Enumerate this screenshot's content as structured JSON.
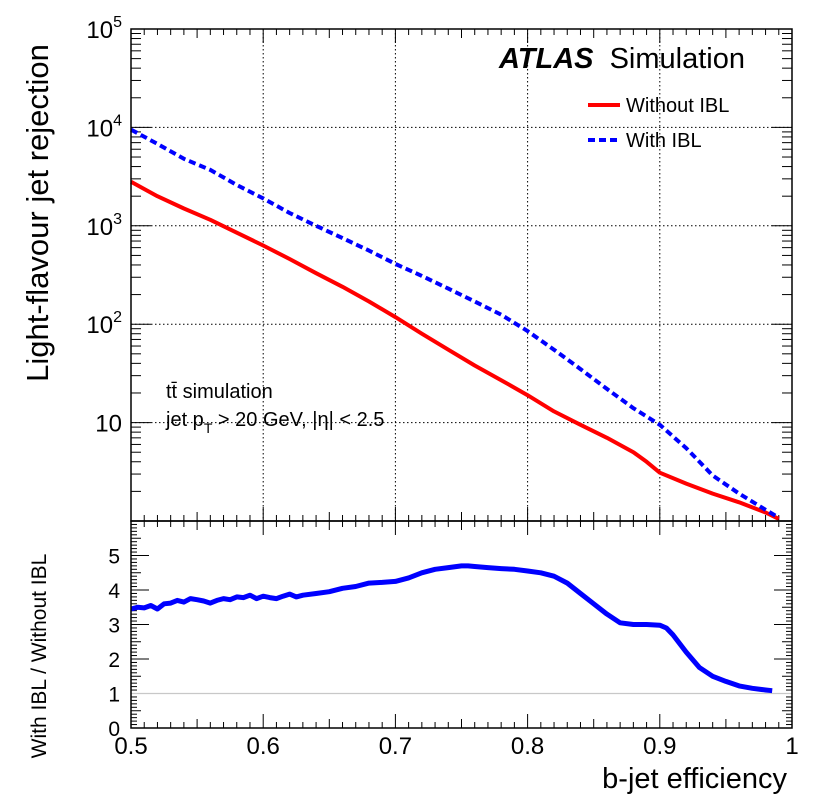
{
  "chart_data": [
    {
      "type": "line",
      "panel": "top",
      "yscale": "log",
      "xlim": [
        0.5,
        1.0
      ],
      "ylim": [
        1,
        100000
      ],
      "ylabel": "Light-flavour jet rejection",
      "ytick_labels": [
        {
          "value": 10,
          "base": "10",
          "exp": ""
        },
        {
          "value": 100,
          "base": "10",
          "exp": "2"
        },
        {
          "value": 1000,
          "base": "10",
          "exp": "3"
        },
        {
          "value": 10000,
          "base": "10",
          "exp": "4"
        },
        {
          "value": 100000,
          "base": "10",
          "exp": "5"
        }
      ],
      "grid": true,
      "legend_position": "top-right",
      "branding": {
        "bold": "ATLAS",
        "rest": "Simulation"
      },
      "annotation_line1": "tt̄ simulation",
      "annotation_line2": {
        "prefix": "jet p",
        "sub": "T",
        "suffix": " > 20 GeV, |η| < 2.5"
      },
      "series": [
        {
          "name": "Without IBL",
          "color": "#ff0000",
          "style": "solid",
          "x": [
            0.5,
            0.52,
            0.54,
            0.56,
            0.58,
            0.6,
            0.62,
            0.64,
            0.66,
            0.68,
            0.7,
            0.72,
            0.74,
            0.76,
            0.78,
            0.8,
            0.82,
            0.84,
            0.86,
            0.88,
            0.89,
            0.9,
            0.92,
            0.94,
            0.96,
            0.98,
            0.99
          ],
          "values": [
            2800,
            2000,
            1500,
            1150,
            850,
            630,
            460,
            330,
            240,
            170,
            118,
            80,
            55,
            38,
            27,
            19,
            13,
            9.5,
            7,
            5,
            4,
            3.1,
            2.4,
            1.9,
            1.55,
            1.22,
            1.05
          ]
        },
        {
          "name": "With IBL",
          "color": "#0000ff",
          "style": "dashed",
          "x": [
            0.5,
            0.52,
            0.54,
            0.56,
            0.58,
            0.6,
            0.62,
            0.64,
            0.66,
            0.68,
            0.7,
            0.72,
            0.74,
            0.76,
            0.78,
            0.8,
            0.82,
            0.84,
            0.86,
            0.88,
            0.9,
            0.92,
            0.94,
            0.96,
            0.98,
            0.99
          ],
          "values": [
            9500,
            6800,
            4800,
            3700,
            2600,
            1900,
            1350,
            1000,
            750,
            560,
            410,
            310,
            230,
            170,
            125,
            85,
            55,
            35,
            22,
            14,
            9.5,
            5.5,
            2.9,
            1.9,
            1.3,
            1.08
          ]
        }
      ]
    },
    {
      "type": "line",
      "panel": "bottom",
      "xlim": [
        0.5,
        1.0
      ],
      "ylim": [
        0,
        6
      ],
      "xlabel": "b-jet efficiency",
      "ylabel": "With IBL / Without IBL",
      "xtick_labels": [
        "0.5",
        "0.6",
        "0.7",
        "0.8",
        "0.9",
        "1"
      ],
      "ytick_labels": [
        "0",
        "1",
        "2",
        "3",
        "4",
        "5"
      ],
      "reference_line": 1,
      "series": [
        {
          "name": "ratio",
          "color": "#0000ff",
          "style": "solid",
          "x": [
            0.5,
            0.505,
            0.51,
            0.515,
            0.52,
            0.525,
            0.53,
            0.535,
            0.54,
            0.545,
            0.55,
            0.555,
            0.56,
            0.565,
            0.57,
            0.575,
            0.58,
            0.585,
            0.59,
            0.595,
            0.6,
            0.605,
            0.61,
            0.615,
            0.62,
            0.625,
            0.63,
            0.64,
            0.65,
            0.66,
            0.67,
            0.68,
            0.69,
            0.7,
            0.71,
            0.72,
            0.73,
            0.74,
            0.75,
            0.755,
            0.76,
            0.77,
            0.78,
            0.79,
            0.8,
            0.81,
            0.82,
            0.83,
            0.84,
            0.85,
            0.86,
            0.87,
            0.88,
            0.89,
            0.9,
            0.905,
            0.91,
            0.92,
            0.93,
            0.94,
            0.95,
            0.96,
            0.97,
            0.98,
            0.985
          ],
          "values": [
            3.45,
            3.5,
            3.48,
            3.55,
            3.45,
            3.6,
            3.62,
            3.7,
            3.65,
            3.75,
            3.72,
            3.68,
            3.62,
            3.7,
            3.75,
            3.72,
            3.8,
            3.78,
            3.85,
            3.75,
            3.82,
            3.78,
            3.75,
            3.82,
            3.88,
            3.8,
            3.85,
            3.9,
            3.95,
            4.05,
            4.1,
            4.2,
            4.22,
            4.25,
            4.35,
            4.5,
            4.6,
            4.65,
            4.7,
            4.7,
            4.68,
            4.65,
            4.62,
            4.6,
            4.55,
            4.5,
            4.4,
            4.2,
            3.9,
            3.6,
            3.3,
            3.05,
            3.0,
            3.0,
            2.98,
            2.9,
            2.7,
            2.2,
            1.75,
            1.5,
            1.35,
            1.22,
            1.15,
            1.1,
            1.08
          ]
        }
      ]
    }
  ]
}
